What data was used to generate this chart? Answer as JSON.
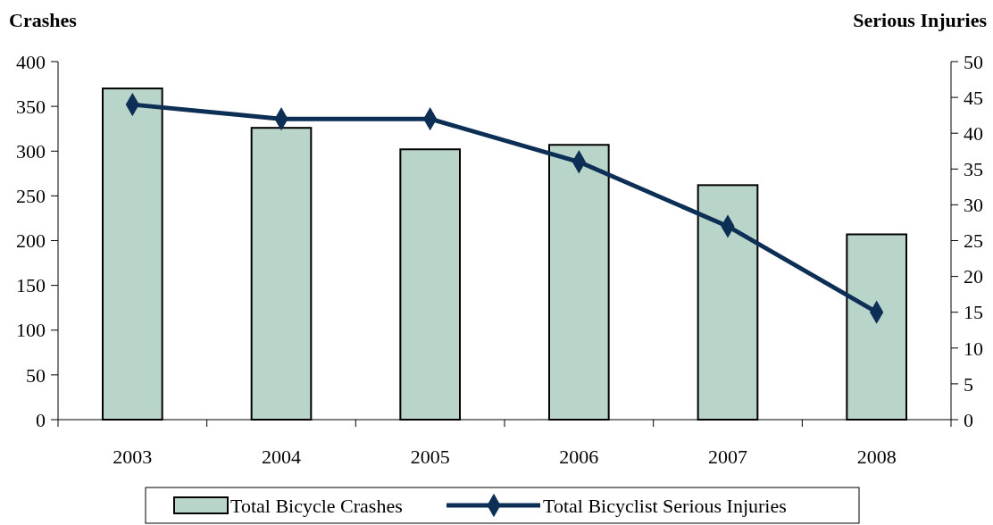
{
  "chart_data": {
    "type": "bar",
    "ylabel": "Crashes",
    "y2label": "Serious Injuries",
    "categories": [
      "2003",
      "2004",
      "2005",
      "2006",
      "2007",
      "2008"
    ],
    "series": [
      {
        "name": "Total Bicycle Crashes",
        "color": "#b9d5c9",
        "values": [
          370,
          326,
          302,
          307,
          262,
          207
        ]
      },
      {
        "name": "Total Bicyclist Serious Injuries",
        "type": "line",
        "axis": "y2",
        "color": "#0d2f55",
        "values": [
          44,
          42,
          42,
          36,
          27,
          15
        ]
      }
    ],
    "ylim": [
      0,
      400
    ],
    "yticks": [
      0,
      50,
      100,
      150,
      200,
      250,
      300,
      350,
      400
    ],
    "y2lim": [
      0,
      50
    ],
    "y2ticks": [
      0,
      5,
      10,
      15,
      20,
      25,
      30,
      35,
      40,
      45,
      50
    ],
    "legend": "bottom",
    "marker": "diamond",
    "grid": false
  }
}
